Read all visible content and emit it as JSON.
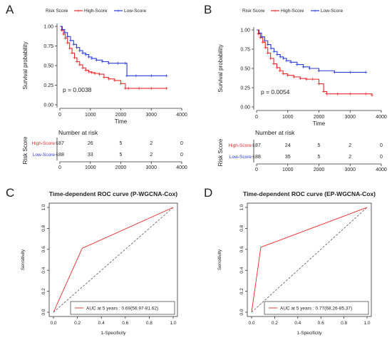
{
  "panels": {
    "A": {
      "letter": "A"
    },
    "B": {
      "letter": "B"
    },
    "C": {
      "letter": "C"
    },
    "D": {
      "letter": "D"
    }
  },
  "chart_data": [
    {
      "id": "A",
      "type": "line",
      "subtype": "kaplan-meier",
      "legend_title": "Risk Score",
      "legend_position": "top",
      "xlabel": "Time",
      "ylabel": "Survival probability",
      "xlim": [
        0,
        4000
      ],
      "ylim": [
        0,
        1
      ],
      "xticks": [
        "0",
        "1000",
        "2000",
        "3000",
        "4000"
      ],
      "yticks": [
        "0.00",
        "0.25",
        "0.50",
        "0.75",
        "1.00"
      ],
      "pvalue": "p = 0.0038",
      "series": [
        {
          "name": "High-Score",
          "color": "#e8282a",
          "x": [
            0,
            60,
            120,
            180,
            250,
            320,
            400,
            480,
            560,
            650,
            750,
            850,
            950,
            1050,
            1150,
            1300,
            1450,
            1600,
            1800,
            2000,
            2150,
            2250,
            2600,
            3000,
            3500
          ],
          "y": [
            1.0,
            0.95,
            0.9,
            0.85,
            0.79,
            0.72,
            0.66,
            0.6,
            0.55,
            0.51,
            0.47,
            0.44,
            0.42,
            0.41,
            0.4,
            0.39,
            0.35,
            0.33,
            0.31,
            0.27,
            0.21,
            0.21,
            0.21,
            0.21,
            0.21
          ]
        },
        {
          "name": "Low-Score",
          "color": "#2c3bdc",
          "x": [
            0,
            80,
            160,
            250,
            350,
            450,
            550,
            650,
            750,
            850,
            950,
            1050,
            1200,
            1400,
            1600,
            1900,
            2150,
            2200,
            2500,
            3000,
            3500
          ],
          "y": [
            1.0,
            0.96,
            0.92,
            0.87,
            0.82,
            0.77,
            0.73,
            0.69,
            0.66,
            0.64,
            0.61,
            0.59,
            0.57,
            0.55,
            0.53,
            0.53,
            0.53,
            0.37,
            0.37,
            0.37,
            0.37
          ]
        }
      ],
      "risk_table": {
        "title": "Number at risk",
        "ylabel": "Risk Score",
        "times": [
          "0",
          "1000",
          "2000",
          "3000",
          "4000"
        ],
        "rows": [
          {
            "label": "High-Score",
            "color": "#e8282a",
            "values": [
              "187",
              "26",
              "5",
              "2",
              "0"
            ]
          },
          {
            "label": "Low-Score",
            "color": "#2c3bdc",
            "values": [
              "188",
              "33",
              "5",
              "2",
              "0"
            ]
          }
        ]
      }
    },
    {
      "id": "B",
      "type": "line",
      "subtype": "kaplan-meier",
      "legend_title": "Risk Score",
      "legend_position": "top",
      "xlabel": "Time",
      "ylabel": "Survival probability",
      "xlim": [
        0,
        4000
      ],
      "ylim": [
        0,
        1
      ],
      "xticks": [
        "0",
        "1000",
        "2000",
        "3000",
        "4000"
      ],
      "yticks": [
        "0.00",
        "0.25",
        "0.50",
        "0.75",
        "1.00"
      ],
      "pvalue": "p = 0.0054",
      "series": [
        {
          "name": "High-Score",
          "color": "#e8282a",
          "x": [
            0,
            60,
            120,
            200,
            280,
            360,
            450,
            550,
            650,
            750,
            850,
            1000,
            1200,
            1400,
            1600,
            1800,
            2000,
            2150,
            2250,
            2600,
            3000,
            3500,
            3700
          ],
          "y": [
            1.0,
            0.95,
            0.9,
            0.84,
            0.77,
            0.7,
            0.63,
            0.56,
            0.51,
            0.47,
            0.43,
            0.41,
            0.39,
            0.37,
            0.36,
            0.36,
            0.3,
            0.2,
            0.17,
            0.17,
            0.17,
            0.17,
            0.15
          ]
        },
        {
          "name": "Low-Score",
          "color": "#2c3bdc",
          "x": [
            0,
            80,
            160,
            260,
            360,
            460,
            560,
            660,
            760,
            860,
            960,
            1100,
            1300,
            1500,
            1700,
            2000,
            2500,
            3000,
            3500
          ],
          "y": [
            1.0,
            0.96,
            0.91,
            0.86,
            0.81,
            0.76,
            0.72,
            0.68,
            0.65,
            0.63,
            0.6,
            0.58,
            0.55,
            0.52,
            0.5,
            0.47,
            0.45,
            0.45,
            0.45
          ]
        }
      ],
      "risk_table": {
        "title": "Number at risk",
        "ylabel": "Risk Score",
        "times": [
          "0",
          "1000",
          "2000",
          "3000",
          "4000"
        ],
        "rows": [
          {
            "label": "High-Score",
            "color": "#e8282a",
            "values": [
              "187",
              "24",
              "5",
              "2",
              "0"
            ]
          },
          {
            "label": "Low-Score",
            "color": "#2c3bdc",
            "values": [
              "188",
              "35",
              "5",
              "2",
              "0"
            ]
          }
        ]
      }
    },
    {
      "id": "C",
      "type": "line",
      "subtype": "roc",
      "title": "Time-dependent ROC curve (P-WGCNA-Cox)",
      "xlabel": "1-Specificity",
      "ylabel": "Sensitivity",
      "xlim": [
        0,
        1
      ],
      "ylim": [
        0,
        1
      ],
      "xticks": [
        "0.0",
        "0.2",
        "0.4",
        "0.6",
        "0.8",
        "1.0"
      ],
      "yticks": [
        "0.0",
        "0.2",
        "0.4",
        "0.6",
        "0.8",
        "1.0"
      ],
      "legend_position": "bottom-right",
      "series": [
        {
          "name": "AUC at 5 years : 0.69(56.97-81.62)",
          "color": "#e8282a",
          "x": [
            0,
            0.24,
            1.0
          ],
          "y": [
            0,
            0.61,
            1.0
          ]
        }
      ],
      "reference_line": {
        "x": [
          0,
          1
        ],
        "y": [
          0,
          1
        ],
        "style": "dashed",
        "color": "#555555"
      }
    },
    {
      "id": "D",
      "type": "line",
      "subtype": "roc",
      "title": "Time-dependent ROC curve (EP-WGCNA-Cox)",
      "xlabel": "1-Specificity",
      "ylabel": "Sensitivity",
      "xlim": [
        0,
        1
      ],
      "ylim": [
        0,
        1
      ],
      "xticks": [
        "0.0",
        "0.2",
        "0.4",
        "0.6",
        "0.8",
        "1.0"
      ],
      "yticks": [
        "0.0",
        "0.2",
        "0.4",
        "0.6",
        "0.8",
        "1.0"
      ],
      "legend_position": "bottom-right",
      "series": [
        {
          "name": "AUC at 5 years : 0.77(68.26-85.37)",
          "color": "#e8282a",
          "x": [
            0,
            0.08,
            1.0
          ],
          "y": [
            0,
            0.62,
            1.0
          ]
        }
      ],
      "reference_line": {
        "x": [
          0,
          1
        ],
        "y": [
          0,
          1
        ],
        "style": "dashed",
        "color": "#555555"
      }
    }
  ]
}
